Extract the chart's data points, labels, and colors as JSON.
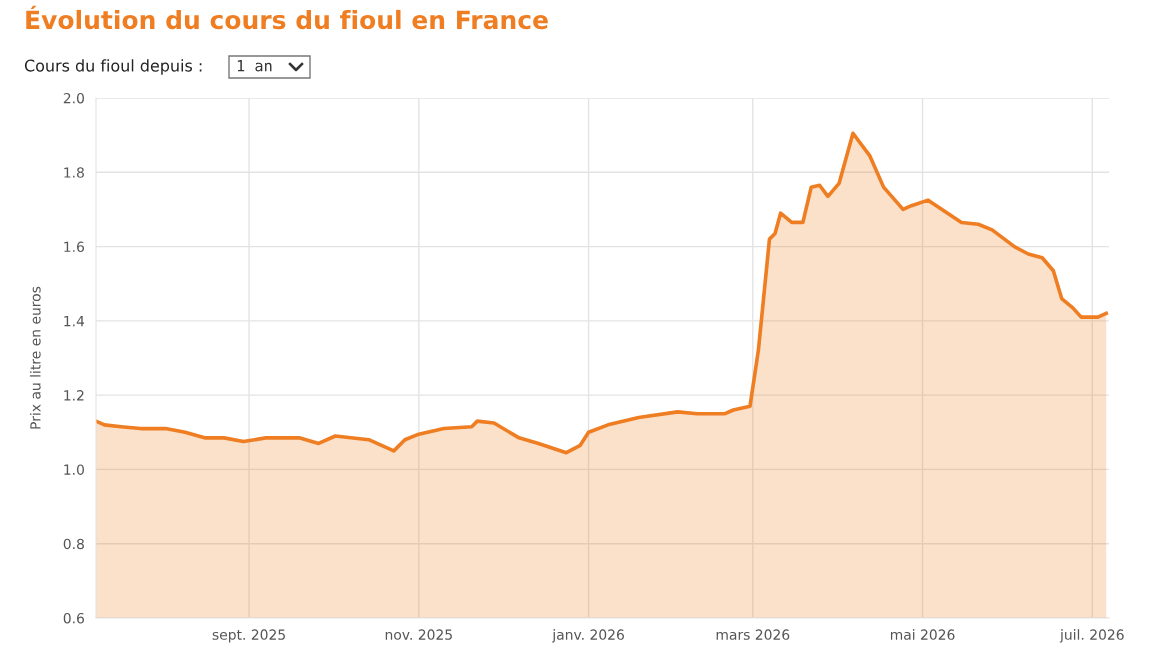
{
  "chart_data": {
    "type": "area",
    "title": "Évolution du cours du fioul en France",
    "subtitle": "Cours du fioul depuis :",
    "annotations": [
      "1 an"
    ],
    "ylabel": "Prix au litre en euros",
    "x": [
      "2025-07-08",
      "2025-07-11",
      "2025-07-17",
      "2025-07-24",
      "2025-08-02",
      "2025-08-09",
      "2025-08-16",
      "2025-08-23",
      "2025-08-30",
      "2025-09-07",
      "2025-09-19",
      "2025-09-26",
      "2025-10-02",
      "2025-10-14",
      "2025-10-23",
      "2025-10-27",
      "2025-11-01",
      "2025-11-10",
      "2025-11-20",
      "2025-11-22",
      "2025-11-28",
      "2025-12-07",
      "2025-12-14",
      "2025-12-24",
      "2025-12-29",
      "2026-01-01",
      "2026-01-08",
      "2026-01-19",
      "2026-02-02",
      "2026-02-09",
      "2026-02-19",
      "2026-02-22",
      "2026-02-28",
      "2026-03-03",
      "2026-03-07",
      "2026-03-09",
      "2026-03-11",
      "2026-03-15",
      "2026-03-19",
      "2026-03-22",
      "2026-03-25",
      "2026-03-28",
      "2026-04-01",
      "2026-04-06",
      "2026-04-08",
      "2026-04-12",
      "2026-04-17",
      "2026-04-24",
      "2026-04-27",
      "2026-05-03",
      "2026-05-10",
      "2026-05-15",
      "2026-05-21",
      "2026-05-26",
      "2026-06-03",
      "2026-06-08",
      "2026-06-13",
      "2026-06-17",
      "2026-06-20",
      "2026-06-24",
      "2026-06-27",
      "2026-07-03",
      "2026-07-06"
    ],
    "series": [
      {
        "color": "#ef7d22",
        "values": [
          1.13,
          1.12,
          1.115,
          1.11,
          1.11,
          1.1,
          1.085,
          1.085,
          1.075,
          1.085,
          1.085,
          1.07,
          1.09,
          1.08,
          1.05,
          1.08,
          1.095,
          1.11,
          1.115,
          1.13,
          1.125,
          1.085,
          1.07,
          1.045,
          1.065,
          1.1,
          1.12,
          1.14,
          1.155,
          1.15,
          1.15,
          1.16,
          1.17,
          1.32,
          1.62,
          1.635,
          1.69,
          1.665,
          1.665,
          1.76,
          1.765,
          1.735,
          1.77,
          1.905,
          1.885,
          1.845,
          1.76,
          1.7,
          1.71,
          1.725,
          1.69,
          1.665,
          1.66,
          1.645,
          1.6,
          1.58,
          1.57,
          1.535,
          1.46,
          1.435,
          1.41,
          1.41,
          1.42
        ]
      }
    ],
    "xlim": [
      "2025-07-08",
      "2026-07-07"
    ],
    "xticks": [
      {
        "value": "2025-09-01",
        "label": "sept. 2025"
      },
      {
        "value": "2025-11-01",
        "label": "nov. 2025"
      },
      {
        "value": "2026-01-01",
        "label": "janv. 2026"
      },
      {
        "value": "2026-03-01",
        "label": "mars 2026"
      },
      {
        "value": "2026-05-01",
        "label": "mai 2026"
      },
      {
        "value": "2026-07-01",
        "label": "juil. 2026"
      }
    ],
    "ylim": [
      0.6,
      2.0
    ],
    "yticks": [
      {
        "value": 0.6,
        "label": "0.6"
      },
      {
        "value": 0.8,
        "label": "0.8"
      },
      {
        "value": 1.0,
        "label": "1.0"
      },
      {
        "value": 1.2,
        "label": "1.2"
      },
      {
        "value": 1.4,
        "label": "1.4"
      },
      {
        "value": 1.6,
        "label": "1.6"
      },
      {
        "value": 1.8,
        "label": "1.8"
      },
      {
        "value": 2.0,
        "label": "2.0"
      }
    ],
    "grid": true
  }
}
